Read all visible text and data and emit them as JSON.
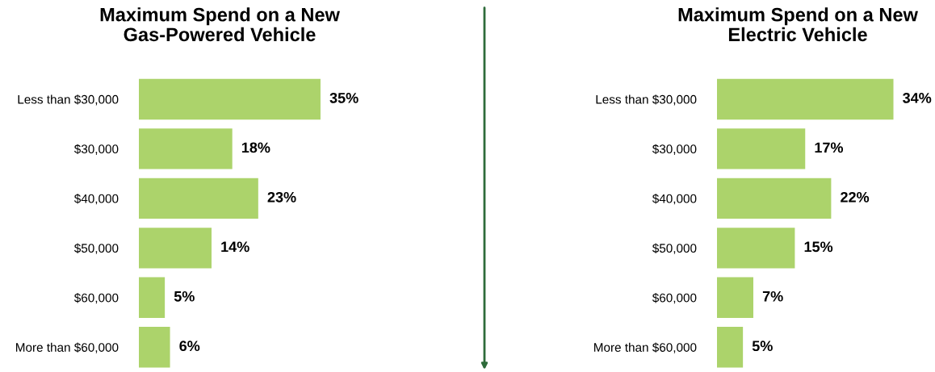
{
  "chart_data": [
    {
      "type": "bar",
      "orientation": "horizontal",
      "title": "Maximum Spend on a New\nGas-Powered Vehicle",
      "tick_labels": "y",
      "categories": [
        "Less than $30,000",
        "$30,000",
        "$40,000",
        "$50,000",
        "$60,000",
        "More than $60,000"
      ],
      "values": [
        35,
        18,
        23,
        14,
        5,
        6
      ],
      "color": "#acd36b",
      "value_labels": [
        "35%",
        "18%",
        "23%",
        "14%",
        "5%",
        "6%"
      ],
      "grid": false,
      "legend": false
    },
    {
      "type": "bar",
      "orientation": "horizontal",
      "title": "Maximum Spend on a New\nElectric Vehicle",
      "tick_labels": "y",
      "categories": [
        "Less than $30,000",
        "$30,000",
        "$40,000",
        "$50,000",
        "$60,000",
        "More than $60,000"
      ],
      "values": [
        34,
        17,
        22,
        15,
        7,
        5
      ],
      "color": "#acd36b",
      "value_labels": [
        "34%",
        "17%",
        "22%",
        "15%",
        "7%",
        "5%"
      ],
      "grid": false,
      "legend": false
    }
  ]
}
